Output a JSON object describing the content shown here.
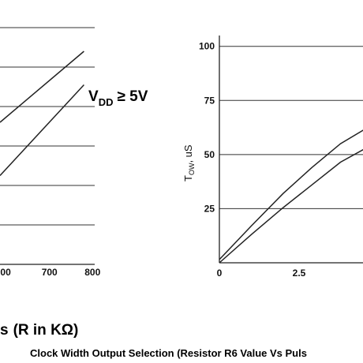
{
  "chart_data": [
    {
      "type": "line",
      "xlabel": "",
      "ylabel": "",
      "x_ticks": [
        "00",
        "700",
        "800"
      ],
      "xlim": [
        585,
        805
      ],
      "ylim": [
        0,
        6
      ],
      "grid": "horizontal",
      "annotation": {
        "main": "V",
        "sub": "DD",
        "rest": "≥ 5V"
      },
      "series": [
        {
          "x": [
            585,
            780
          ],
          "y": [
            3.6,
            5.4
          ]
        },
        {
          "x": [
            585,
            780
          ],
          "y": [
            2.25,
            4.55
          ]
        }
      ]
    },
    {
      "type": "line",
      "ylabel": {
        "main": "T",
        "sub": "OW",
        "unit": ", uS"
      },
      "xlabel": "",
      "x_ticks": [
        "0",
        "2.5"
      ],
      "y_ticks": [
        "100",
        "75",
        "50",
        "25"
      ],
      "xlim": [
        0,
        5
      ],
      "ylim": [
        0,
        105
      ],
      "grid": "horizontal",
      "series": [
        {
          "x": [
            0,
            1,
            2,
            2.9,
            3.8,
            4.6,
            5
          ],
          "y": [
            1.5,
            17,
            32,
            44,
            55,
            62,
            65
          ]
        },
        {
          "x": [
            0,
            1,
            2,
            2.9,
            3.8,
            4.6,
            5
          ],
          "y": [
            0,
            13,
            25.5,
            36,
            46.5,
            53,
            56
          ]
        }
      ]
    }
  ],
  "r_label": "(R in KΩ)",
  "r_label_prefix": "s",
  "footer": "Clock Width Output Selection (Resistor R6 Value Vs Puls"
}
